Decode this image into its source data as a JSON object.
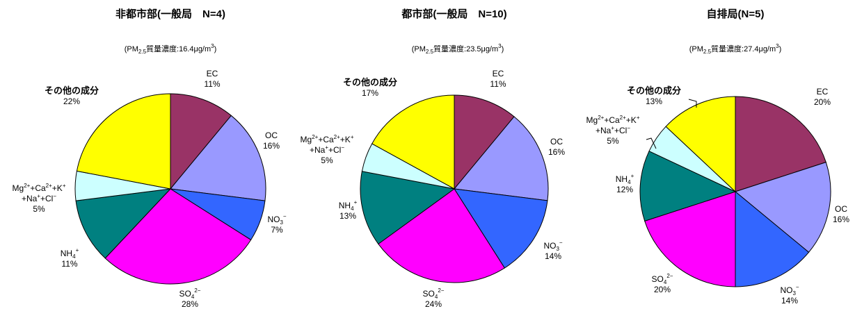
{
  "chart_data": [
    {
      "type": "pie",
      "title": "非都市部(一般局　N=4)",
      "subtitle": "(PM2.5質量濃度:16.4μg/m3)",
      "slices": [
        {
          "key": "ec",
          "label": "EC",
          "value": 11,
          "pct": "11%",
          "color": "#993366"
        },
        {
          "key": "oc",
          "label": "OC",
          "value": 16,
          "pct": "16%",
          "color": "#9999ff"
        },
        {
          "key": "no3",
          "label": "NO3−",
          "value": 7,
          "pct": "7%",
          "color": "#3366ff"
        },
        {
          "key": "so4",
          "label": "SO42−",
          "value": 28,
          "pct": "28%",
          "color": "#ff00ff"
        },
        {
          "key": "nh4",
          "label": "NH4+",
          "value": 11,
          "pct": "11%",
          "color": "#008080"
        },
        {
          "key": "metals",
          "label": "Mg2++Ca2++K++Na++Cl−",
          "value": 5,
          "pct": "5%",
          "color": "#ccffff"
        },
        {
          "key": "other",
          "label": "その他の成分",
          "value": 22,
          "pct": "22%",
          "color": "#ffff00"
        }
      ]
    },
    {
      "type": "pie",
      "title": "都市部(一般局　N=10)",
      "subtitle": "(PM2.5質量濃度:23.5μg/m3)",
      "slices": [
        {
          "key": "ec",
          "label": "EC",
          "value": 11,
          "pct": "11%",
          "color": "#993366"
        },
        {
          "key": "oc",
          "label": "OC",
          "value": 16,
          "pct": "16%",
          "color": "#9999ff"
        },
        {
          "key": "no3",
          "label": "NO3−",
          "value": 14,
          "pct": "14%",
          "color": "#3366ff"
        },
        {
          "key": "so4",
          "label": "SO42−",
          "value": 24,
          "pct": "24%",
          "color": "#ff00ff"
        },
        {
          "key": "nh4",
          "label": "NH4+",
          "value": 13,
          "pct": "13%",
          "color": "#008080"
        },
        {
          "key": "metals",
          "label": "Mg2++Ca2++K++Na++Cl−",
          "value": 5,
          "pct": "5%",
          "color": "#ccffff"
        },
        {
          "key": "other",
          "label": "その他の成分",
          "value": 17,
          "pct": "17%",
          "color": "#ffff00"
        }
      ]
    },
    {
      "type": "pie",
      "title": "自排局(N=5)",
      "subtitle": "(PM2.5質量濃度:27.4μg/m3)",
      "slices": [
        {
          "key": "ec",
          "label": "EC",
          "value": 20,
          "pct": "20%",
          "color": "#993366"
        },
        {
          "key": "oc",
          "label": "OC",
          "value": 16,
          "pct": "16%",
          "color": "#9999ff"
        },
        {
          "key": "no3",
          "label": "NO3−",
          "value": 14,
          "pct": "14%",
          "color": "#3366ff"
        },
        {
          "key": "so4",
          "label": "SO42−",
          "value": 20,
          "pct": "20%",
          "color": "#ff00ff"
        },
        {
          "key": "nh4",
          "label": "NH4+",
          "value": 12,
          "pct": "12%",
          "color": "#008080"
        },
        {
          "key": "metals",
          "label": "Mg2++Ca2++K++Na++Cl−",
          "value": 5,
          "pct": "5%",
          "color": "#ccffff"
        },
        {
          "key": "other",
          "label": "その他の成分",
          "value": 13,
          "pct": "13%",
          "color": "#ffff00"
        }
      ]
    }
  ]
}
